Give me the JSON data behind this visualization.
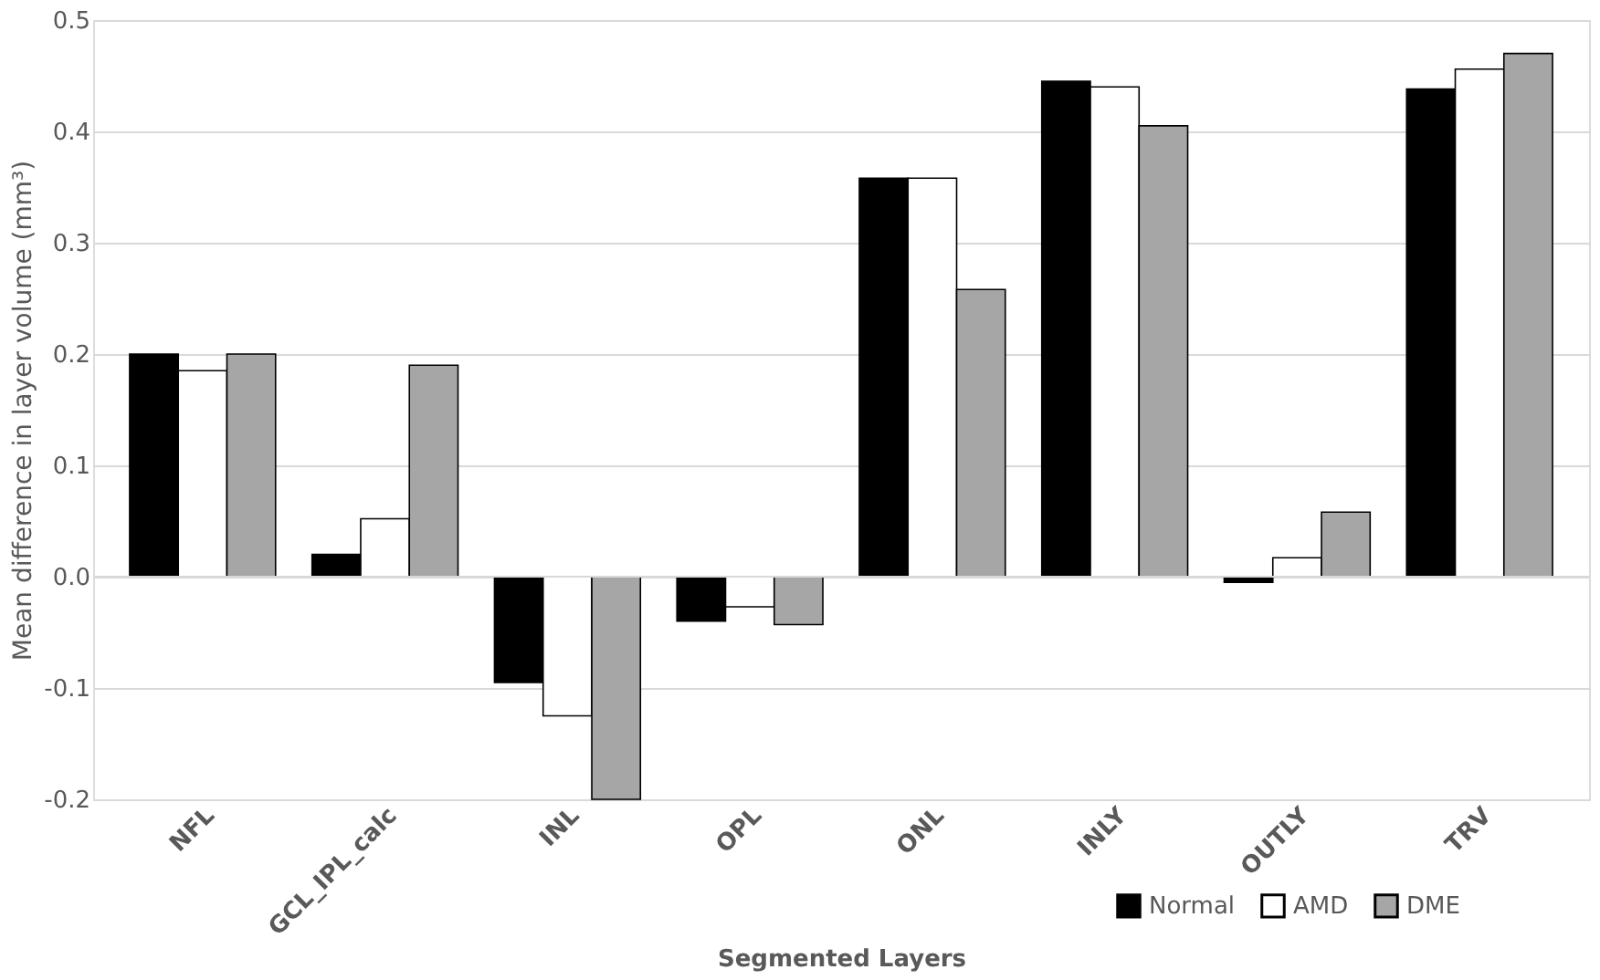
{
  "chart_data": {
    "type": "bar",
    "xlabel": "Segmented Layers",
    "ylabel": "Mean difference in layer volume (mm³)",
    "categories": [
      "NFL",
      "GCL_IPL_calc",
      "INL",
      "OPL",
      "ONL",
      "INLY",
      "OUTLY",
      "TRV"
    ],
    "series": [
      {
        "name": "Normal",
        "color": "#000000",
        "values": [
          0.2,
          0.02,
          -0.095,
          -0.04,
          0.358,
          0.445,
          -0.005,
          0.438
        ]
      },
      {
        "name": "AMD",
        "color": "#ffffff",
        "values": [
          0.185,
          0.052,
          -0.125,
          -0.027,
          0.358,
          0.44,
          0.017,
          0.456
        ]
      },
      {
        "name": "DME",
        "color": "#a6a6a6",
        "values": [
          0.2,
          0.19,
          -0.2,
          -0.043,
          0.258,
          0.405,
          0.058,
          0.47
        ]
      }
    ],
    "ylim": [
      -0.2,
      0.5
    ],
    "yticks": [
      {
        "value": -0.2,
        "label": "-0.2"
      },
      {
        "value": -0.1,
        "label": "-0.1"
      },
      {
        "value": 0,
        "label": "0.0"
      },
      {
        "value": 0.1,
        "label": "0.1"
      },
      {
        "value": 0.2,
        "label": "0.2"
      },
      {
        "value": 0.3,
        "label": "0.3"
      },
      {
        "value": 0.4,
        "label": "0.4"
      },
      {
        "value": 0.5,
        "label": "0.5"
      }
    ],
    "grid": "y",
    "legend": "bottom right"
  }
}
